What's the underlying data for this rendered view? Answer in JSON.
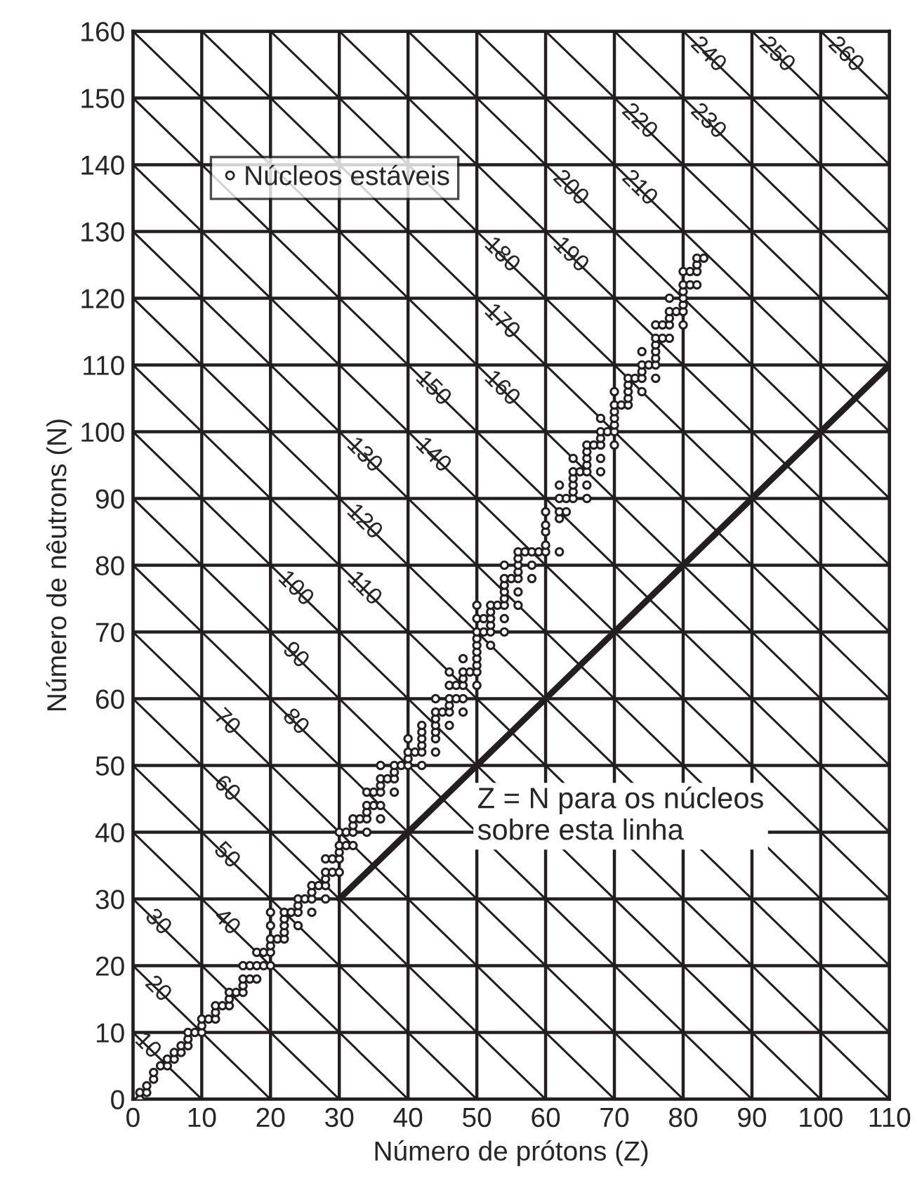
{
  "chart_data": {
    "type": "scatter",
    "xlabel": "Número de prótons (Z)",
    "ylabel": "Número de nêutrons (N)",
    "xlim": [
      0,
      110
    ],
    "ylim": [
      0,
      160
    ],
    "xticks": [
      0,
      10,
      20,
      30,
      40,
      50,
      60,
      70,
      80,
      90,
      100,
      110
    ],
    "yticks": [
      0,
      10,
      20,
      30,
      40,
      50,
      60,
      70,
      80,
      90,
      100,
      110,
      120,
      130,
      140,
      150,
      160
    ],
    "grid": true,
    "legend": "top left",
    "series": [
      {
        "type": "line",
        "color": "#231f20",
        "x": [
          30,
          110
        ],
        "values": [
          30,
          110
        ]
      },
      {
        "name": "Núcleos estáveis",
        "color": "#231f20",
        "marker": "circle",
        "x": [
          1,
          1,
          2,
          2,
          3,
          3,
          4,
          5,
          5,
          6,
          6,
          7,
          7,
          8,
          8,
          8,
          9,
          10,
          10,
          10,
          11,
          12,
          12,
          12,
          13,
          14,
          14,
          14,
          15,
          16,
          16,
          16,
          16,
          17,
          17,
          18,
          18,
          18,
          19,
          19,
          20,
          20,
          20,
          20,
          20,
          20,
          21,
          22,
          22,
          22,
          22,
          22,
          23,
          24,
          24,
          24,
          24,
          25,
          26,
          26,
          26,
          26,
          27,
          28,
          28,
          28,
          28,
          28,
          29,
          29,
          30,
          30,
          30,
          30,
          30,
          31,
          31,
          32,
          32,
          32,
          32,
          33,
          34,
          34,
          34,
          34,
          34,
          35,
          35,
          36,
          36,
          36,
          36,
          36,
          36,
          37,
          38,
          38,
          38,
          38,
          39,
          40,
          40,
          40,
          40,
          41,
          42,
          42,
          42,
          42,
          42,
          42,
          44,
          44,
          44,
          44,
          44,
          44,
          44,
          45,
          46,
          46,
          46,
          46,
          46,
          46,
          47,
          47,
          48,
          48,
          48,
          48,
          48,
          48,
          49,
          50,
          50,
          50,
          50,
          50,
          50,
          50,
          50,
          50,
          50,
          51,
          51,
          52,
          52,
          52,
          52,
          52,
          52,
          53,
          54,
          54,
          54,
          54,
          54,
          54,
          54,
          54,
          55,
          56,
          56,
          56,
          56,
          56,
          56,
          56,
          57,
          58,
          58,
          58,
          59,
          60,
          60,
          60,
          60,
          60,
          62,
          62,
          62,
          62,
          62,
          63,
          63,
          64,
          64,
          64,
          64,
          64,
          64,
          65,
          66,
          66,
          66,
          66,
          66,
          66,
          66,
          67,
          68,
          68,
          68,
          68,
          68,
          68,
          69,
          70,
          70,
          70,
          70,
          70,
          70,
          70,
          71,
          72,
          72,
          72,
          72,
          72,
          73,
          74,
          74,
          74,
          74,
          74,
          75,
          76,
          76,
          76,
          76,
          76,
          76,
          76,
          77,
          77,
          78,
          78,
          78,
          78,
          78,
          79,
          80,
          80,
          80,
          80,
          80,
          80,
          80,
          81,
          81,
          82,
          82,
          82,
          82,
          83
        ],
        "values": [
          0,
          1,
          1,
          2,
          3,
          4,
          5,
          5,
          6,
          6,
          7,
          7,
          8,
          8,
          9,
          10,
          10,
          10,
          11,
          12,
          12,
          12,
          13,
          14,
          14,
          14,
          15,
          16,
          16,
          16,
          17,
          18,
          20,
          18,
          20,
          18,
          20,
          22,
          20,
          22,
          20,
          22,
          23,
          24,
          26,
          28,
          24,
          24,
          25,
          26,
          27,
          28,
          28,
          26,
          28,
          29,
          30,
          30,
          28,
          30,
          31,
          32,
          32,
          30,
          32,
          33,
          34,
          36,
          34,
          36,
          34,
          36,
          37,
          38,
          40,
          38,
          40,
          38,
          40,
          41,
          42,
          42,
          40,
          42,
          43,
          44,
          46,
          44,
          46,
          42,
          44,
          46,
          47,
          48,
          50,
          48,
          46,
          48,
          49,
          50,
          50,
          50,
          51,
          52,
          54,
          52,
          50,
          52,
          53,
          54,
          55,
          56,
          52,
          54,
          55,
          56,
          57,
          58,
          60,
          58,
          56,
          58,
          59,
          60,
          62,
          64,
          60,
          62,
          58,
          60,
          62,
          63,
          64,
          66,
          64,
          62,
          64,
          65,
          66,
          67,
          68,
          69,
          70,
          72,
          74,
          70,
          72,
          68,
          70,
          71,
          72,
          73,
          74,
          74,
          70,
          72,
          74,
          75,
          76,
          77,
          78,
          80,
          78,
          74,
          76,
          78,
          79,
          80,
          81,
          82,
          82,
          78,
          80,
          82,
          82,
          82,
          83,
          85,
          86,
          88,
          82,
          87,
          88,
          90,
          92,
          88,
          90,
          90,
          91,
          92,
          93,
          94,
          96,
          94,
          90,
          92,
          94,
          95,
          96,
          97,
          98,
          98,
          94,
          96,
          98,
          99,
          100,
          102,
          100,
          98,
          100,
          101,
          102,
          103,
          104,
          106,
          104,
          104,
          105,
          106,
          107,
          108,
          108,
          106,
          108,
          109,
          110,
          112,
          110,
          108,
          110,
          111,
          112,
          113,
          114,
          116,
          114,
          116,
          114,
          116,
          117,
          118,
          120,
          118,
          116,
          118,
          119,
          120,
          121,
          122,
          124,
          122,
          124,
          122,
          124,
          125,
          126,
          126
        ]
      },
      {
        "type": "line",
        "color": "#231f20",
        "x": [
          0,
          10
        ],
        "values": [
          10,
          0
        ]
      },
      {
        "type": "line",
        "color": "#231f20",
        "x": [
          0,
          20
        ],
        "values": [
          20,
          0
        ]
      },
      {
        "type": "line",
        "color": "#231f20",
        "x": [
          0,
          30
        ],
        "values": [
          30,
          0
        ]
      },
      {
        "type": "line",
        "color": "#231f20",
        "x": [
          0,
          40
        ],
        "values": [
          40,
          0
        ]
      },
      {
        "type": "line",
        "color": "#231f20",
        "x": [
          0,
          50
        ],
        "values": [
          50,
          0
        ]
      },
      {
        "type": "line",
        "color": "#231f20",
        "x": [
          0,
          60
        ],
        "values": [
          60,
          0
        ]
      },
      {
        "type": "line",
        "color": "#231f20",
        "x": [
          0,
          70
        ],
        "values": [
          70,
          0
        ]
      },
      {
        "type": "line",
        "color": "#231f20",
        "x": [
          0,
          80
        ],
        "values": [
          80,
          0
        ]
      },
      {
        "type": "line",
        "color": "#231f20",
        "x": [
          0,
          90
        ],
        "values": [
          90,
          0
        ]
      },
      {
        "type": "line",
        "color": "#231f20",
        "x": [
          0,
          100
        ],
        "values": [
          100,
          0
        ]
      },
      {
        "type": "line",
        "color": "#231f20",
        "x": [
          0,
          110
        ],
        "values": [
          110,
          0
        ]
      },
      {
        "type": "line",
        "color": "#231f20",
        "x": [
          0,
          110
        ],
        "values": [
          120,
          10
        ]
      },
      {
        "type": "line",
        "color": "#231f20",
        "x": [
          0,
          110
        ],
        "values": [
          130,
          20
        ]
      },
      {
        "type": "line",
        "color": "#231f20",
        "x": [
          0,
          110
        ],
        "values": [
          140,
          30
        ]
      },
      {
        "type": "line",
        "color": "#231f20",
        "x": [
          0,
          110
        ],
        "values": [
          150,
          40
        ]
      },
      {
        "type": "line",
        "color": "#231f20",
        "x": [
          0,
          110
        ],
        "values": [
          160,
          50
        ]
      },
      {
        "type": "line",
        "color": "#231f20",
        "x": [
          10,
          110
        ],
        "values": [
          160,
          60
        ]
      },
      {
        "type": "line",
        "color": "#231f20",
        "x": [
          20,
          110
        ],
        "values": [
          160,
          70
        ]
      },
      {
        "type": "line",
        "color": "#231f20",
        "x": [
          30,
          110
        ],
        "values": [
          160,
          80
        ]
      },
      {
        "type": "line",
        "color": "#231f20",
        "x": [
          40,
          110
        ],
        "values": [
          160,
          90
        ]
      },
      {
        "type": "line",
        "color": "#231f20",
        "x": [
          50,
          110
        ],
        "values": [
          160,
          100
        ]
      },
      {
        "type": "line",
        "color": "#231f20",
        "x": [
          60,
          110
        ],
        "values": [
          160,
          110
        ]
      },
      {
        "type": "line",
        "color": "#231f20",
        "x": [
          70,
          110
        ],
        "values": [
          160,
          120
        ]
      },
      {
        "type": "line",
        "color": "#231f20",
        "x": [
          80,
          110
        ],
        "values": [
          160,
          130
        ]
      },
      {
        "type": "line",
        "color": "#231f20",
        "x": [
          90,
          110
        ],
        "values": [
          160,
          140
        ]
      },
      {
        "type": "line",
        "color": "#231f20",
        "x": [
          100,
          110
        ],
        "values": [
          160,
          150
        ]
      }
    ],
    "annotations": [
      {
        "text": "10",
        "x": 3.5,
        "y": 6.5
      },
      {
        "text": "20",
        "x": 5,
        "y": 15
      },
      {
        "text": "30",
        "x": 5,
        "y": 25
      },
      {
        "text": "40",
        "x": 15,
        "y": 25
      },
      {
        "text": "50",
        "x": 15,
        "y": 35
      },
      {
        "text": "60",
        "x": 15,
        "y": 45
      },
      {
        "text": "70",
        "x": 15,
        "y": 55
      },
      {
        "text": "80",
        "x": 25,
        "y": 55
      },
      {
        "text": "90",
        "x": 25,
        "y": 65
      },
      {
        "text": "100",
        "x": 25,
        "y": 75
      },
      {
        "text": "110",
        "x": 35,
        "y": 75
      },
      {
        "text": "120",
        "x": 35,
        "y": 85
      },
      {
        "text": "130",
        "x": 35,
        "y": 95
      },
      {
        "text": "140",
        "x": 45,
        "y": 95
      },
      {
        "text": "150",
        "x": 45,
        "y": 105
      },
      {
        "text": "160",
        "x": 55,
        "y": 105
      },
      {
        "text": "170",
        "x": 55,
        "y": 115
      },
      {
        "text": "180",
        "x": 55,
        "y": 125
      },
      {
        "text": "190",
        "x": 65,
        "y": 125
      },
      {
        "text": "200",
        "x": 65,
        "y": 135
      },
      {
        "text": "210",
        "x": 75,
        "y": 135
      },
      {
        "text": "220",
        "x": 75,
        "y": 145
      },
      {
        "text": "230",
        "x": 85,
        "y": 145
      },
      {
        "text": "240",
        "x": 85,
        "y": 155
      },
      {
        "text": "250",
        "x": 95,
        "y": 155
      },
      {
        "text": "260",
        "x": 105,
        "y": 155
      },
      "Z = N para os núcleos\nsobre esta linha"
    ]
  }
}
